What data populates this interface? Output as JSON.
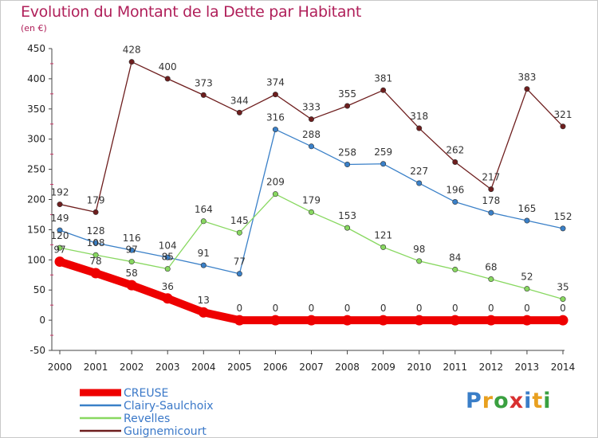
{
  "header": {
    "title": "Evolution du Montant de la Dette par Habitant",
    "subtitle": "(en €)"
  },
  "logo": {
    "text": "Proxiti",
    "letter_colors": [
      "#3a7ec8",
      "#e8a020",
      "#3aa040",
      "#d83030",
      "#3a7ec8",
      "#e8a020",
      "#3aa040"
    ]
  },
  "chart_data": {
    "type": "line",
    "title": "Evolution du Montant de la Dette par Habitant",
    "subtitle": "(en €)",
    "xlabel": "",
    "ylabel": "",
    "x": [
      "2000",
      "2001",
      "2002",
      "2003",
      "2004",
      "2005",
      "2006",
      "2007",
      "2008",
      "2009",
      "2010",
      "2011",
      "2012",
      "2013",
      "2014"
    ],
    "ylim": [
      -50,
      450
    ],
    "yticks": [
      -50,
      0,
      50,
      100,
      150,
      200,
      250,
      300,
      350,
      400,
      450
    ],
    "grid": false,
    "legend_position": "bottom-left",
    "series": [
      {
        "name": "CREUSE",
        "color": "#ee0000",
        "values": [
          97,
          78,
          58,
          36,
          13,
          0,
          0,
          0,
          0,
          0,
          0,
          0,
          0,
          0,
          0
        ]
      },
      {
        "name": "Clairy-Saulchoix",
        "color": "#3a80c8",
        "values": [
          149,
          128,
          116,
          104,
          91,
          77,
          316,
          288,
          258,
          259,
          227,
          196,
          178,
          165,
          152
        ]
      },
      {
        "name": "Revelles",
        "color": "#88d860",
        "values": [
          120,
          108,
          97,
          85,
          164,
          145,
          209,
          179,
          153,
          121,
          98,
          84,
          68,
          52,
          35
        ]
      },
      {
        "name": "Guignemicourt",
        "color": "#6e1e1e",
        "values": [
          192,
          179,
          428,
          400,
          373,
          344,
          374,
          333,
          355,
          381,
          318,
          262,
          217,
          383,
          321
        ]
      }
    ]
  }
}
